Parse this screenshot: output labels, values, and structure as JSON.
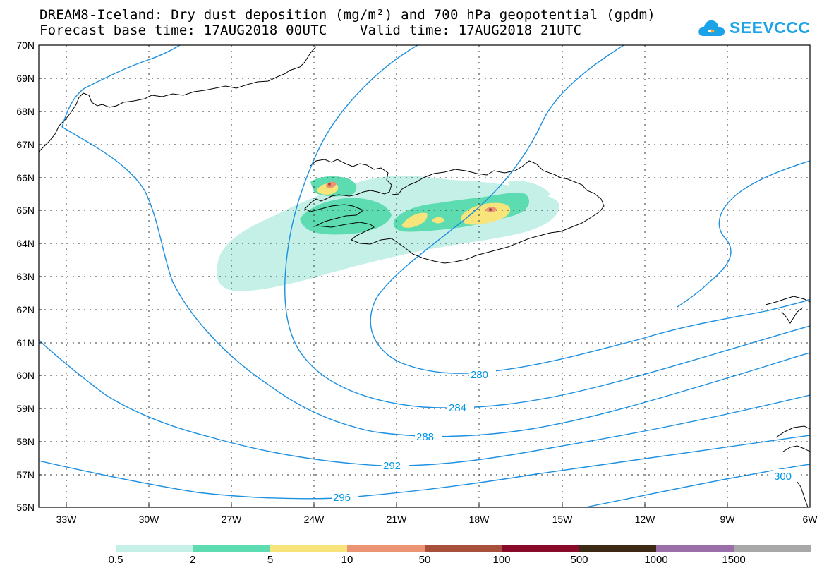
{
  "title": {
    "line1": "DREAM8-Iceland: Dry dust deposition (mg/m²) and 700 hPa geopotential (gpdm)",
    "line2": "Forecast base time: 17AUG2018 00UTC    Valid time: 17AUG2018 21UTC"
  },
  "logo": {
    "text": "SEEVCCC",
    "icon": "cloud-icon",
    "color": "#1aa3e8"
  },
  "map": {
    "lat_labels": [
      "70N",
      "69N",
      "68N",
      "67N",
      "66N",
      "65N",
      "64N",
      "63N",
      "62N",
      "61N",
      "60N",
      "59N",
      "58N",
      "57N",
      "56N"
    ],
    "lon_labels": [
      "33W",
      "30W",
      "27W",
      "24W",
      "21W",
      "18W",
      "15W",
      "12W",
      "9W",
      "6W"
    ],
    "contour_labels": [
      "280",
      "284",
      "288",
      "292",
      "296",
      "300"
    ],
    "contour_color": "#1e90e0"
  },
  "legend": {
    "colors": [
      "#c4f0e8",
      "#5cdcb0",
      "#f7e47a",
      "#eb9373",
      "#a8503c",
      "#8a0a2a",
      "#3c2a14",
      "#9a6ea8",
      "#a8a8a8"
    ],
    "labels": [
      "0.5",
      "2",
      "5",
      "10",
      "50",
      "100",
      "500",
      "1000",
      "1500"
    ]
  }
}
